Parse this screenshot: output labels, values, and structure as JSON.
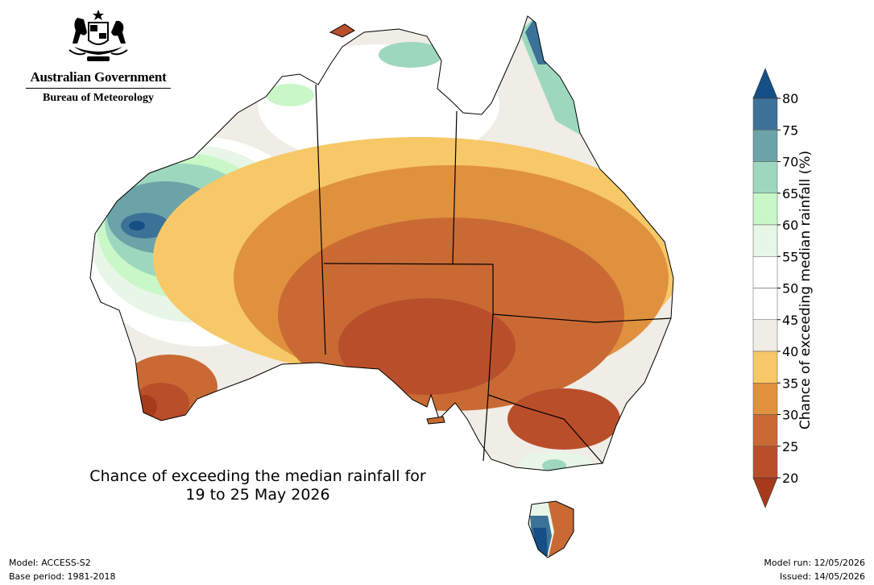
{
  "header": {
    "government": "Australian Government",
    "bureau": "Bureau of Meteorology"
  },
  "map": {
    "title_line1": "Chance of exceeding the median rainfall for",
    "title_line2": "19 to 25 May 2026"
  },
  "legend": {
    "label": "Chance of exceeding median rainfall (%)",
    "ticks": [
      "20",
      "25",
      "30",
      "35",
      "40",
      "45",
      "50",
      "55",
      "60",
      "65",
      "70",
      "75",
      "80"
    ],
    "bands": [
      {
        "range": "<20",
        "color": "#a63a1a"
      },
      {
        "range": "20-25",
        "color": "#b94e2b"
      },
      {
        "range": "25-30",
        "color": "#c96a34"
      },
      {
        "range": "30-35",
        "color": "#e0913e"
      },
      {
        "range": "35-40",
        "color": "#f7c867"
      },
      {
        "range": "40-45",
        "color": "#f0ece6"
      },
      {
        "range": "45-50",
        "color": "#ffffff"
      },
      {
        "range": "50-55",
        "color": "#ffffff"
      },
      {
        "range": "55-60",
        "color": "#e7f6e6"
      },
      {
        "range": "60-65",
        "color": "#c9f7c8"
      },
      {
        "range": "65-70",
        "color": "#9dd7be"
      },
      {
        "range": "70-75",
        "color": "#6ba3a8"
      },
      {
        "range": "75-80",
        "color": "#3d7298"
      },
      {
        "range": ">80",
        "color": "#154f86"
      }
    ]
  },
  "footer": {
    "model": "Model: ACCESS-S2",
    "base_period": "Base period: 1981-2018",
    "model_run": "Model run: 12/05/2026",
    "issued": "Issued: 14/05/2026"
  }
}
